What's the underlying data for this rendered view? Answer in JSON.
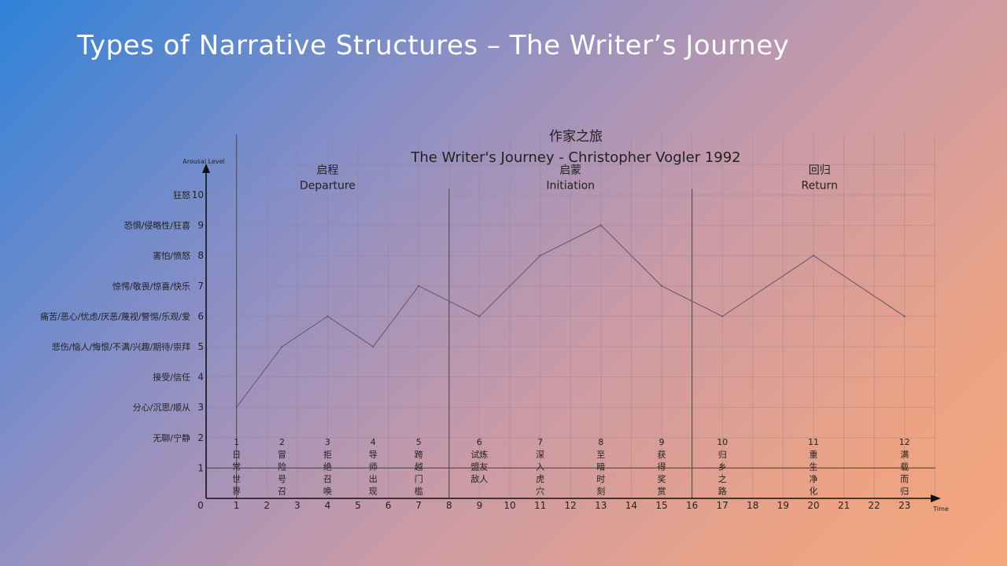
{
  "slide": {
    "title": "Types of Narrative Structures – The Writer’s Journey"
  },
  "chart_data": {
    "type": "line",
    "title": "作家之旅",
    "subtitle": "The Writer's Journey - Christopher Vogler 1992",
    "xlabel": "Time",
    "ylabel": "Arousal Level",
    "xlim": [
      0,
      24
    ],
    "ylim": [
      0,
      10
    ],
    "grid": true,
    "x_ticks": [
      0,
      1,
      2,
      3,
      4,
      5,
      6,
      7,
      8,
      9,
      10,
      11,
      12,
      13,
      14,
      15,
      16,
      17,
      18,
      19,
      20,
      21,
      22,
      23
    ],
    "y_ticks": [
      {
        "value": 1,
        "label": ""
      },
      {
        "value": 2,
        "label": "无聊/宁静"
      },
      {
        "value": 3,
        "label": "分心/沉思/顺从"
      },
      {
        "value": 4,
        "label": "接受/信任"
      },
      {
        "value": 5,
        "label": "悲伤/恼人/悔恨/不满/兴趣/期待/崇拜"
      },
      {
        "value": 6,
        "label": "痛苦/恶心/忧虑/厌恶/蔑视/警惕/乐观/爱"
      },
      {
        "value": 7,
        "label": "惊愕/敬畏/惊喜/快乐"
      },
      {
        "value": 8,
        "label": "害怕/愤怒"
      },
      {
        "value": 9,
        "label": "恐惧/侵略性/狂喜"
      },
      {
        "value": 10,
        "label": "狂怒"
      }
    ],
    "phase_dividers": [
      8,
      16
    ],
    "phases": [
      {
        "cn": "启程",
        "en": "Departure",
        "center": 4
      },
      {
        "cn": "启蒙",
        "en": "Initiation",
        "center": 12
      },
      {
        "cn": "回归",
        "en": "Return",
        "center": 20.2
      }
    ],
    "points": [
      {
        "x": 1,
        "y": 3
      },
      {
        "x": 2.5,
        "y": 5
      },
      {
        "x": 4,
        "y": 6
      },
      {
        "x": 5.5,
        "y": 5
      },
      {
        "x": 7,
        "y": 7
      },
      {
        "x": 9,
        "y": 6
      },
      {
        "x": 11,
        "y": 8
      },
      {
        "x": 13,
        "y": 9
      },
      {
        "x": 15,
        "y": 7
      },
      {
        "x": 17,
        "y": 6
      },
      {
        "x": 20,
        "y": 8
      },
      {
        "x": 23,
        "y": 6
      }
    ],
    "stages": [
      {
        "x": 1,
        "num": "1",
        "lines": [
          "日",
          "常",
          "世",
          "界"
        ]
      },
      {
        "x": 2.5,
        "num": "2",
        "lines": [
          "冒",
          "险",
          "号",
          "召"
        ]
      },
      {
        "x": 4,
        "num": "3",
        "lines": [
          "拒",
          "绝",
          "召",
          "唤"
        ]
      },
      {
        "x": 5.5,
        "num": "4",
        "lines": [
          "导",
          "师",
          "出",
          "现"
        ]
      },
      {
        "x": 7,
        "num": "5",
        "lines": [
          "跨",
          "越",
          "门",
          "槛"
        ]
      },
      {
        "x": 9,
        "num": "6",
        "lines": [
          "试炼",
          "盟友",
          "敌人"
        ]
      },
      {
        "x": 11,
        "num": "7",
        "lines": [
          "深",
          "入",
          "虎",
          "穴"
        ]
      },
      {
        "x": 13,
        "num": "8",
        "lines": [
          "至",
          "暗",
          "时",
          "刻"
        ]
      },
      {
        "x": 15,
        "num": "9",
        "lines": [
          "获",
          "得",
          "奖",
          "赏"
        ]
      },
      {
        "x": 17,
        "num": "10",
        "lines": [
          "归",
          "乡",
          "之",
          "路"
        ]
      },
      {
        "x": 20,
        "num": "11",
        "lines": [
          "重",
          "生",
          "净",
          "化"
        ]
      },
      {
        "x": 23,
        "num": "12",
        "lines": [
          "满",
          "载",
          "而",
          "归"
        ]
      }
    ]
  }
}
